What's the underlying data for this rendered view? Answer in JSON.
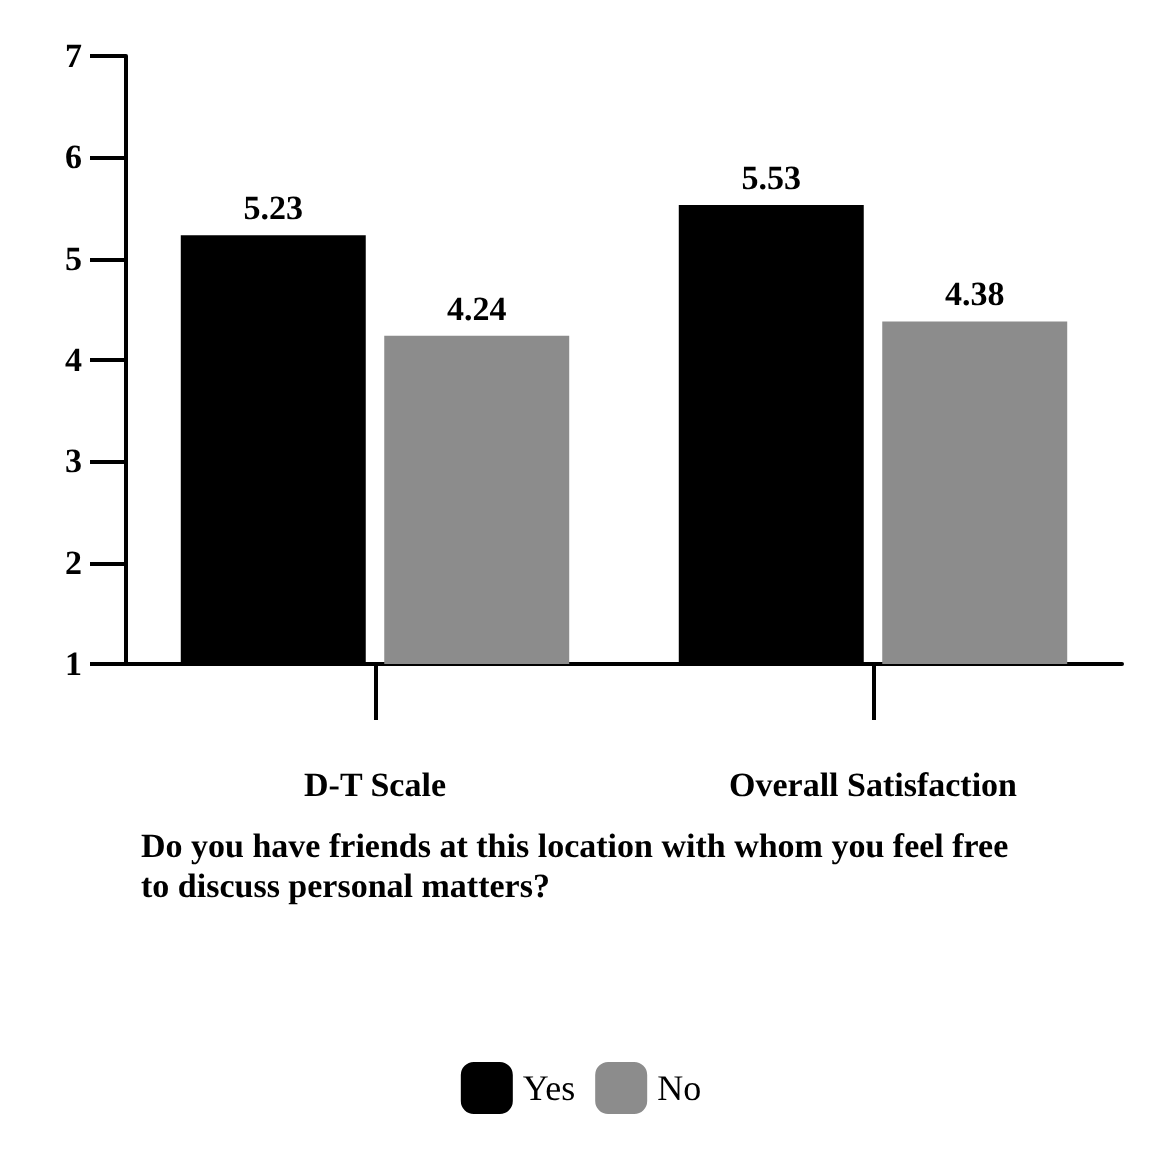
{
  "chart_data": {
    "type": "bar",
    "categories": [
      "D-T Scale",
      "Overall Satisfaction"
    ],
    "xlabel": "Do you have friends at this location with whom you feel free to discuss personal matters?",
    "series": [
      {
        "name": "Yes",
        "color": "#000000",
        "values": [
          5.23,
          5.53
        ]
      },
      {
        "name": "No",
        "color": "#8c8c8c",
        "values": [
          4.24,
          4.38
        ]
      }
    ],
    "ylim": [
      1,
      7
    ],
    "yticks": [
      1,
      2,
      3,
      4,
      5,
      6,
      7
    ],
    "data_labels": true,
    "grid": false,
    "legend": "bottom"
  }
}
